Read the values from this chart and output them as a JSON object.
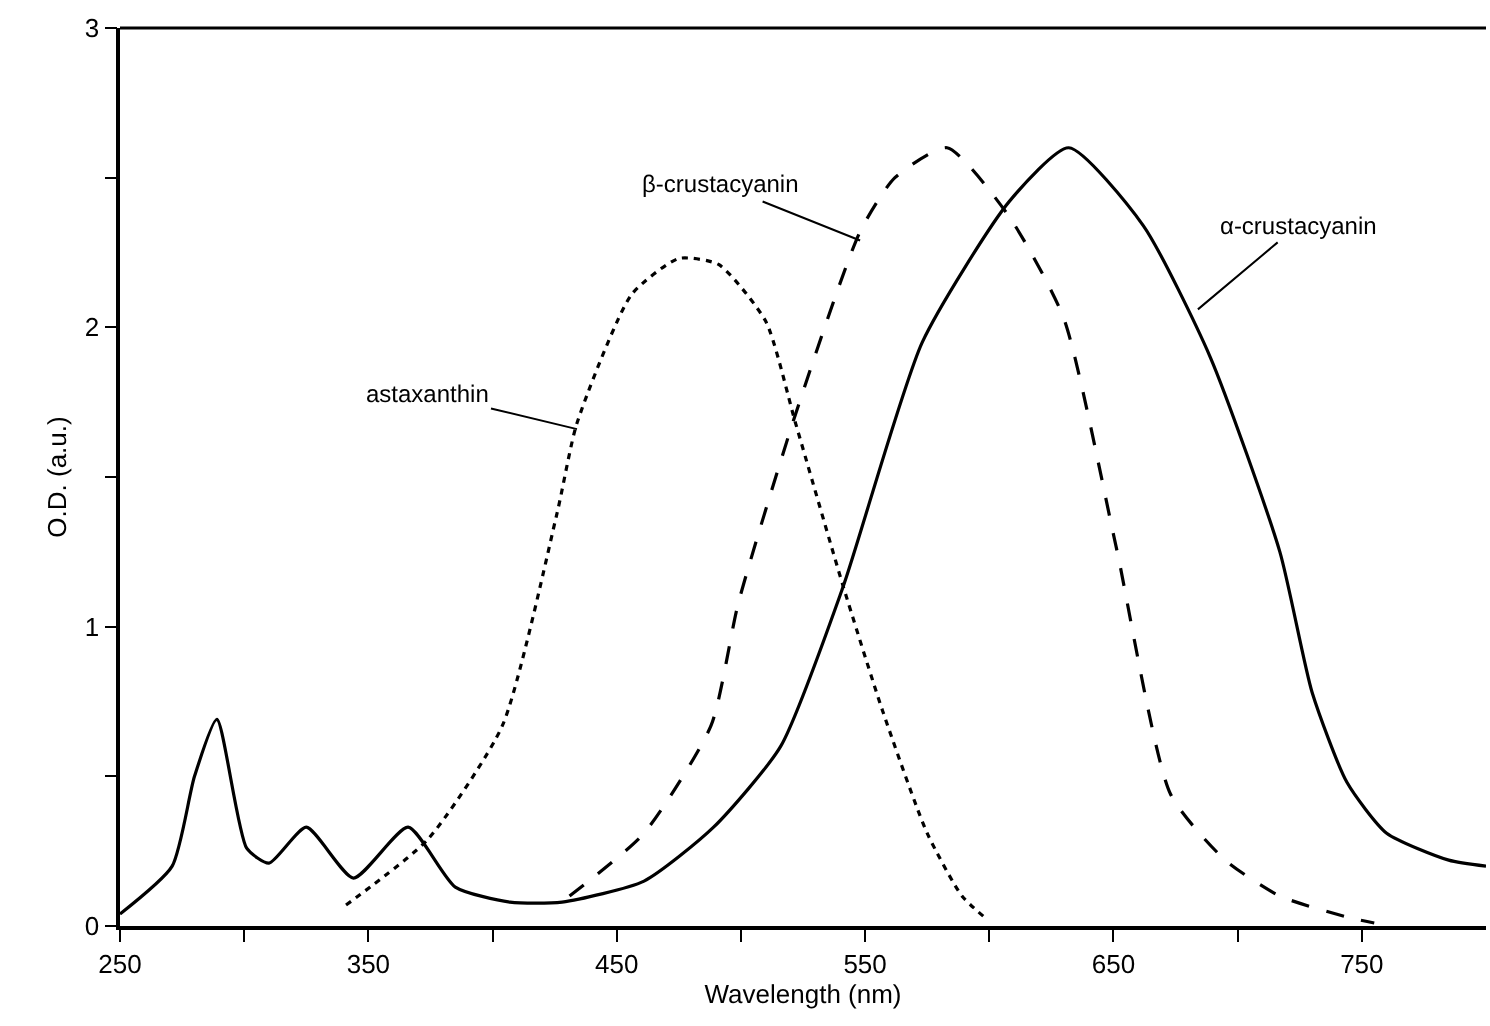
{
  "chart_data": {
    "type": "line",
    "xlabel": "Wavelength (nm)",
    "ylabel": "O.D. (a.u.)",
    "xlim": [
      250,
      800
    ],
    "ylim": [
      0,
      3
    ],
    "xticks": [
      250,
      {
        "value": 300,
        "label": null
      },
      350,
      {
        "value": 400,
        "label": null
      },
      450,
      {
        "value": 500,
        "label": null
      },
      550,
      {
        "value": 600,
        "label": null
      },
      650,
      {
        "value": 700,
        "label": null
      },
      750
    ],
    "yticks": [
      0,
      {
        "value": 0.5,
        "label": null
      },
      1,
      {
        "value": 1.5,
        "label": null
      },
      2,
      {
        "value": 2.5,
        "label": null
      },
      3
    ],
    "marker": "none",
    "series": [
      {
        "color": "#000000",
        "line_style": "solid",
        "x": [
          250,
          271,
          280,
          289,
          301,
          310,
          325,
          344,
          366,
          385,
          407,
          428,
          461,
          489,
          516,
          541,
          573,
          608,
          632,
          662,
          689,
          717,
          730,
          744,
          760,
          785,
          800
        ],
        "values": [
          0.04,
          0.2,
          0.5,
          0.69,
          0.26,
          0.21,
          0.33,
          0.16,
          0.33,
          0.13,
          0.08,
          0.08,
          0.15,
          0.33,
          0.6,
          1.13,
          1.95,
          2.42,
          2.6,
          2.34,
          1.9,
          1.25,
          0.78,
          0.48,
          0.31,
          0.22,
          0.2
        ]
      },
      {
        "color": "#000000",
        "line_style": "dashed",
        "x": [
          431,
          461,
          488,
          499,
          522,
          548,
          562,
          583,
          608,
          630,
          651,
          673,
          695,
          717,
          744,
          755
        ],
        "values": [
          0.1,
          0.31,
          0.67,
          1.08,
          1.71,
          2.32,
          2.5,
          2.6,
          2.37,
          2.03,
          1.27,
          0.44,
          0.22,
          0.1,
          0.03,
          0.01
        ]
      },
      {
        "color": "#000000",
        "line_style": "dotted",
        "x": [
          341,
          374,
          404,
          426,
          434,
          456,
          475,
          491,
          510,
          522,
          541,
          557,
          575,
          589,
          598
        ],
        "values": [
          0.07,
          0.29,
          0.67,
          1.38,
          1.68,
          2.11,
          2.23,
          2.21,
          2.02,
          1.68,
          1.14,
          0.72,
          0.31,
          0.1,
          0.03
        ]
      }
    ],
    "annotations": [
      {
        "text": "β-crustacyanin",
        "x": 548,
        "y": 2.29
      },
      {
        "text": "α-crustacyanin",
        "x": 684,
        "y": 2.06
      },
      {
        "text": "astaxanthin",
        "x": 434,
        "y": 1.66
      }
    ]
  }
}
